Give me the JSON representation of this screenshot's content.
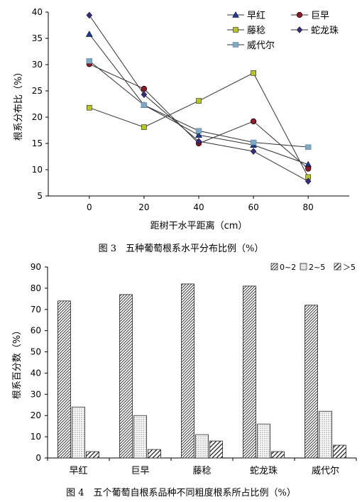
{
  "chart_data": [
    {
      "type": "line",
      "x": [
        0,
        20,
        40,
        60,
        80
      ],
      "xlabel": "距树干水平距离（cm）",
      "ylabel": "根系分布比（%）",
      "xlim": [
        -15,
        95
      ],
      "ylim": [
        5,
        40
      ],
      "xticks": [
        0,
        20,
        40,
        60,
        80
      ],
      "yticks": [
        5,
        10,
        15,
        20,
        25,
        30,
        35,
        40
      ],
      "grid": false,
      "legend_position": "top-right",
      "caption": "图 3　五种葡萄根系水平分布比例（%）",
      "series": [
        {
          "name": "早红",
          "marker": "triangle",
          "values": [
            35.8,
            22.3,
            16.6,
            14.7,
            11.0
          ]
        },
        {
          "name": "巨早",
          "marker": "circle",
          "values": [
            30.1,
            25.4,
            15.0,
            19.2,
            10.2
          ]
        },
        {
          "name": "藤稔",
          "marker": "square",
          "values": [
            21.8,
            18.1,
            23.1,
            28.4,
            8.6
          ]
        },
        {
          "name": "蛇龙珠",
          "marker": "diamond",
          "values": [
            39.4,
            24.3,
            15.4,
            13.5,
            7.8
          ]
        },
        {
          "name": "威代尔",
          "marker": "wide-square",
          "values": [
            30.7,
            22.3,
            17.4,
            15.2,
            14.3
          ]
        }
      ],
      "colors": {
        "早红": "#1f3a8f",
        "巨早": "#8b1a2a",
        "藤稔": "#b7c42a",
        "蛇龙珠": "#3a2a7a",
        "威代尔": "#7fa8c4"
      }
    },
    {
      "type": "bar",
      "categories": [
        "早红",
        "巨早",
        "藤稔",
        "蛇龙珠",
        "威代尔"
      ],
      "ylabel": "根系百分数（%）",
      "ylim": [
        0,
        90
      ],
      "yticks": [
        0,
        10,
        20,
        30,
        40,
        50,
        60,
        70,
        80,
        90
      ],
      "grid": false,
      "legend_position": "top-right",
      "caption": "图 4　五个葡萄自根系品种不同粗度根系所占比例（%）",
      "series": [
        {
          "name": "0~2",
          "pattern": "diagonal-dense",
          "values": [
            74,
            77,
            82,
            81,
            72
          ]
        },
        {
          "name": "2~5",
          "pattern": "dotted",
          "values": [
            24,
            20,
            11,
            16,
            22
          ]
        },
        {
          "name": "＞5",
          "pattern": "diagonal-wide",
          "values": [
            3,
            4,
            8,
            3,
            6
          ]
        }
      ]
    }
  ]
}
